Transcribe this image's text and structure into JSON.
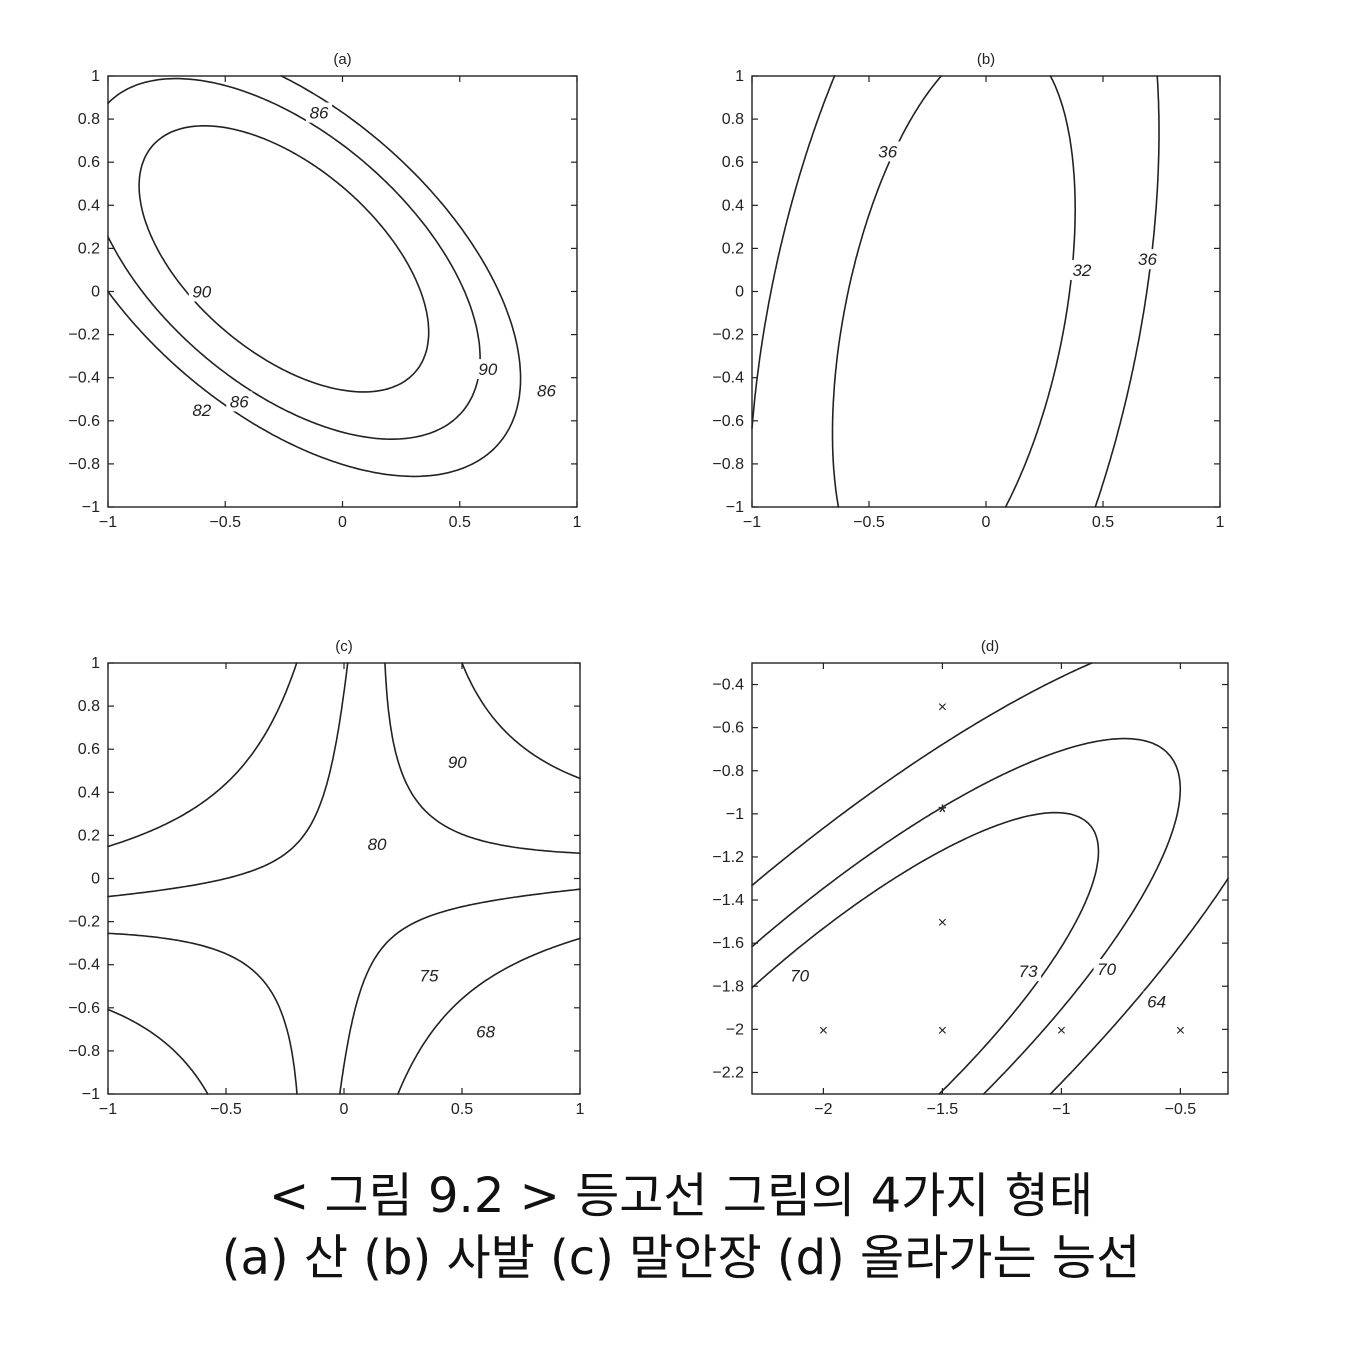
{
  "chart_data": [
    {
      "type": "contour",
      "title": "(a)",
      "xlim": [
        -1,
        1
      ],
      "ylim": [
        -1,
        1
      ],
      "x_ticks": [
        -1,
        -0.5,
        0,
        0.5,
        1
      ],
      "x_tick_labels": [
        "−1",
        "−0.5",
        "0",
        "0.5",
        "1"
      ],
      "y_ticks": [
        -1,
        -0.8,
        -0.6,
        -0.4,
        -0.2,
        0,
        0.2,
        0.4,
        0.6,
        0.8,
        1
      ],
      "y_tick_labels": [
        "−1",
        "−0.8",
        "−0.6",
        "−0.4",
        "−0.2",
        "0",
        "0.2",
        "0.4",
        "0.6",
        "0.8",
        "1"
      ],
      "contour_levels": [
        82,
        86,
        90
      ],
      "contour_labels": [
        {
          "text": "86",
          "x": -0.1,
          "y": 0.83
        },
        {
          "text": "90",
          "x": -0.6,
          "y": 0.0
        },
        {
          "text": "90",
          "x": 0.62,
          "y": -0.36
        },
        {
          "text": "86",
          "x": -0.44,
          "y": -0.51
        },
        {
          "text": "82",
          "x": -0.6,
          "y": -0.55
        },
        {
          "text": "86",
          "x": 0.87,
          "y": -0.46
        }
      ]
    },
    {
      "type": "contour",
      "title": "(b)",
      "xlim": [
        -1,
        1
      ],
      "ylim": [
        -1,
        1
      ],
      "x_ticks": [
        -1,
        -0.5,
        0,
        0.5,
        1
      ],
      "x_tick_labels": [
        "−1",
        "−0.5",
        "0",
        "0.5",
        "1"
      ],
      "y_ticks": [
        -1,
        -0.8,
        -0.6,
        -0.4,
        -0.2,
        0,
        0.2,
        0.4,
        0.6,
        0.8,
        1
      ],
      "y_tick_labels": [
        "−1",
        "−0.8",
        "−0.6",
        "−0.4",
        "−0.2",
        "0",
        "0.2",
        "0.4",
        "0.6",
        "0.8",
        "1"
      ],
      "contour_levels": [
        32,
        36
      ],
      "contour_labels": [
        {
          "text": "36",
          "x": -0.42,
          "y": 0.65
        },
        {
          "text": "32",
          "x": 0.41,
          "y": 0.1
        },
        {
          "text": "36",
          "x": 0.69,
          "y": 0.15
        }
      ]
    },
    {
      "type": "contour",
      "title": "(c)",
      "xlim": [
        -1,
        1
      ],
      "ylim": [
        -1,
        1
      ],
      "x_ticks": [
        -1,
        -0.5,
        0,
        0.5,
        1
      ],
      "x_tick_labels": [
        "−1",
        "−0.5",
        "0",
        "0.5",
        "1"
      ],
      "y_ticks": [
        -1,
        -0.8,
        -0.6,
        -0.4,
        -0.2,
        0,
        0.2,
        0.4,
        0.6,
        0.8,
        1
      ],
      "y_tick_labels": [
        "−1",
        "−0.8",
        "−0.6",
        "−0.4",
        "−0.2",
        "0",
        "0.2",
        "0.4",
        "0.6",
        "0.8",
        "1"
      ],
      "contour_levels": [
        68,
        75,
        80,
        90
      ],
      "contour_labels": [
        {
          "text": "90",
          "x": 0.48,
          "y": 0.54
        },
        {
          "text": "80",
          "x": 0.14,
          "y": 0.16
        },
        {
          "text": "75",
          "x": 0.36,
          "y": -0.45
        },
        {
          "text": "68",
          "x": 0.6,
          "y": -0.71
        }
      ]
    },
    {
      "type": "contour",
      "title": "(d)",
      "xlim": [
        -2.3,
        -0.3
      ],
      "ylim": [
        -2.3,
        -0.3
      ],
      "x_ticks": [
        -2,
        -1.5,
        -1,
        -0.5
      ],
      "x_tick_labels": [
        "−2",
        "−1.5",
        "−1",
        "−0.5"
      ],
      "y_ticks": [
        -2.2,
        -2,
        -1.8,
        -1.6,
        -1.4,
        -1.2,
        -1,
        -0.8,
        -0.6,
        -0.4
      ],
      "y_tick_labels": [
        "−2.2",
        "−2",
        "−1.8",
        "−1.6",
        "−1.4",
        "−1.2",
        "−1",
        "−0.8",
        "−0.6",
        "−0.4"
      ],
      "contour_levels": [
        64,
        70,
        73
      ],
      "contour_labels": [
        {
          "text": "70",
          "x": -2.1,
          "y": -1.75
        },
        {
          "text": "73",
          "x": -1.14,
          "y": -1.73
        },
        {
          "text": "70",
          "x": -0.81,
          "y": -1.72
        },
        {
          "text": "64",
          "x": -0.6,
          "y": -1.87
        }
      ],
      "markers": [
        {
          "symbol": "×",
          "x": -1.5,
          "y": -0.5
        },
        {
          "symbol": "*",
          "x": -1.5,
          "y": -1.0
        },
        {
          "symbol": "×",
          "x": -1.5,
          "y": -1.5
        },
        {
          "symbol": "×",
          "x": -2.0,
          "y": -2.0
        },
        {
          "symbol": "×",
          "x": -1.5,
          "y": -2.0
        },
        {
          "symbol": "×",
          "x": -1.0,
          "y": -2.0
        },
        {
          "symbol": "×",
          "x": -0.5,
          "y": -2.0
        }
      ]
    }
  ],
  "caption": {
    "line1": "< 그림 9.2 > 등고선 그림의 4가지 형태",
    "line2": "(a)  산  (b) 사발  (c) 말안장  (d)  올라가는 능선"
  }
}
